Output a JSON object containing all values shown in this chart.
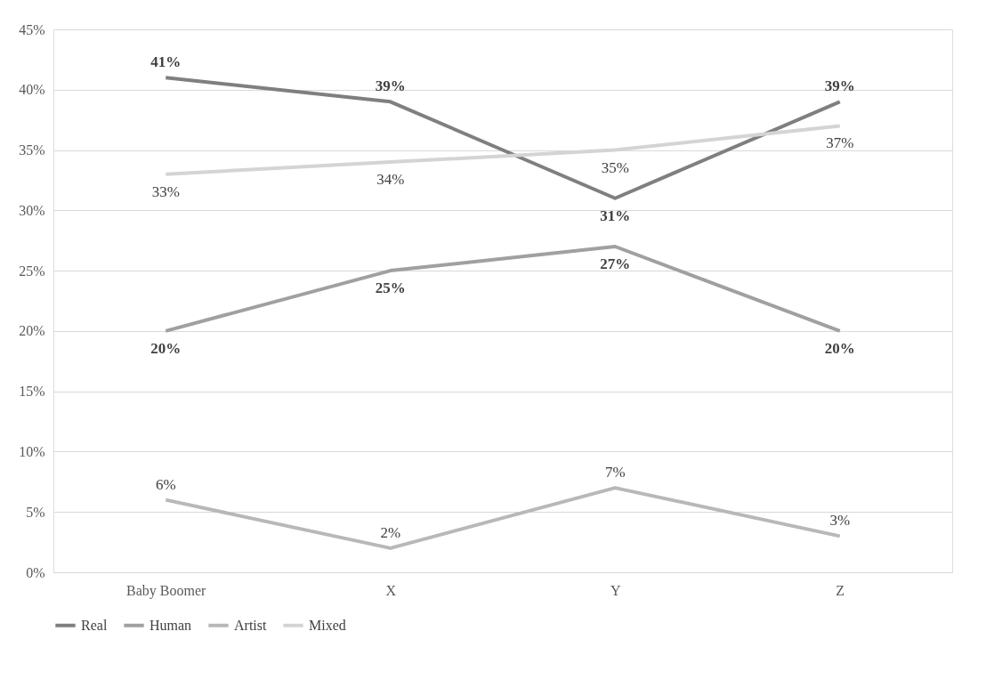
{
  "chart_data": {
    "type": "line",
    "categories": [
      "Baby Boomer",
      "X",
      "Y",
      "Z"
    ],
    "series": [
      {
        "name": "Real",
        "color": "#7f7f7f",
        "values": [
          41,
          39,
          31,
          39
        ],
        "value_labels": [
          "41%",
          "39%",
          "31%",
          "39%"
        ]
      },
      {
        "name": "Human",
        "color": "#a0a0a0",
        "values": [
          20,
          25,
          27,
          20
        ],
        "value_labels": [
          "20%",
          "25%",
          "27%",
          "20%"
        ]
      },
      {
        "name": "Artist",
        "color": "#b8b8b8",
        "values": [
          6,
          2,
          7,
          3
        ],
        "value_labels": [
          "6%",
          "2%",
          "7%",
          "3%"
        ]
      },
      {
        "name": "Mixed",
        "color": "#d4d4d4",
        "values": [
          33,
          34,
          35,
          37
        ],
        "value_labels": [
          "33%",
          "34%",
          "35%",
          "37%"
        ]
      }
    ],
    "ylim": [
      0,
      45
    ],
    "yticks": [
      {
        "value": 0,
        "label": "0%"
      },
      {
        "value": 5,
        "label": "5%"
      },
      {
        "value": 10,
        "label": "10%"
      },
      {
        "value": 15,
        "label": "15%"
      },
      {
        "value": 20,
        "label": "20%"
      },
      {
        "value": 25,
        "label": "25%"
      },
      {
        "value": 30,
        "label": "30%"
      },
      {
        "value": 35,
        "label": "35%"
      },
      {
        "value": 40,
        "label": "40%"
      },
      {
        "value": 45,
        "label": "45%"
      }
    ],
    "grid": "y",
    "legend": "bottom",
    "marker": "none",
    "line_style": "solid"
  }
}
